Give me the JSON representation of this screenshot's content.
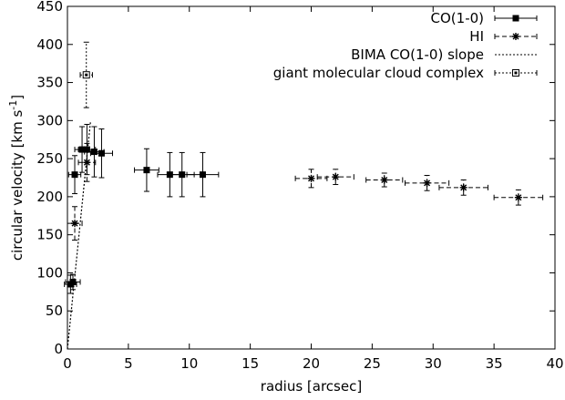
{
  "chart_data": {
    "type": "scatter",
    "title": "",
    "xlabel": "radius [arcsec]",
    "ylabel": "circular velocity [km s",
    "ylabel_sup": "-1",
    "ylabel_close": "]",
    "xlim": [
      0,
      40
    ],
    "ylim": [
      0,
      450
    ],
    "xticks": [
      0,
      5,
      10,
      15,
      20,
      25,
      30,
      35,
      40
    ],
    "yticks": [
      0,
      50,
      100,
      150,
      200,
      250,
      300,
      350,
      400,
      450
    ],
    "grid": false,
    "legend_position": "top-right",
    "series": [
      {
        "name": "CO(1-0)",
        "marker": "filled-square",
        "line": "none",
        "points": [
          {
            "x": 0.25,
            "y": 85,
            "xerr": 0.5,
            "yerr": 12
          },
          {
            "x": 0.45,
            "y": 88,
            "xerr": 0.6,
            "yerr": 10
          },
          {
            "x": 0.6,
            "y": 229,
            "xerr": 0.5,
            "yerr": 25
          },
          {
            "x": 1.2,
            "y": 262,
            "xerr": 0.6,
            "yerr": 30
          },
          {
            "x": 1.6,
            "y": 262,
            "xerr": 0.7,
            "yerr": 33
          },
          {
            "x": 2.2,
            "y": 259,
            "xerr": 0.8,
            "yerr": 33
          },
          {
            "x": 2.8,
            "y": 257,
            "xerr": 0.9,
            "yerr": 32
          },
          {
            "x": 6.5,
            "y": 235,
            "xerr": 1.0,
            "yerr": 28
          },
          {
            "x": 8.4,
            "y": 229,
            "xerr": 1.0,
            "yerr": 29
          },
          {
            "x": 9.4,
            "y": 229,
            "xerr": 1.0,
            "yerr": 29
          },
          {
            "x": 11.1,
            "y": 229,
            "xerr": 1.3,
            "yerr": 29
          }
        ]
      },
      {
        "name": "HI",
        "marker": "star",
        "line": "dashed",
        "points": [
          {
            "x": 0.6,
            "y": 165,
            "xerr": 0.6,
            "yerr": 22
          },
          {
            "x": 1.6,
            "y": 245,
            "xerr": 0.7,
            "yerr": 25
          },
          {
            "x": 20.0,
            "y": 224,
            "xerr": 1.3,
            "yerr": 12
          },
          {
            "x": 22.0,
            "y": 226,
            "xerr": 1.5,
            "yerr": 10
          },
          {
            "x": 26.0,
            "y": 222,
            "xerr": 1.5,
            "yerr": 9
          },
          {
            "x": 29.5,
            "y": 218,
            "xerr": 1.8,
            "yerr": 10
          },
          {
            "x": 32.5,
            "y": 212,
            "xerr": 2.0,
            "yerr": 10
          },
          {
            "x": 37.0,
            "y": 199,
            "xerr": 2.0,
            "yerr": 10
          }
        ]
      },
      {
        "name": "BIMA CO(1-0) slope",
        "marker": "none",
        "line": "dotted",
        "points": [
          {
            "x": 0.0,
            "y": 0
          },
          {
            "x": 1.9,
            "y": 300
          }
        ]
      },
      {
        "name": "giant molecular cloud complex",
        "marker": "open-square",
        "line": "dotted",
        "points": [
          {
            "x": 1.55,
            "y": 360,
            "xerr": 0.5,
            "yerr": 43
          }
        ]
      }
    ]
  }
}
